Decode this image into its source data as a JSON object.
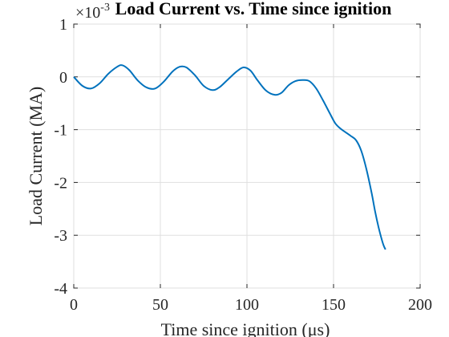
{
  "chart_data": {
    "type": "line",
    "title": "Load Current vs. Time since ignition",
    "xlabel": "Time since ignition (μs)",
    "ylabel": "Load Current (MA)",
    "exponent_label": "×10",
    "exponent_power": "-3",
    "xlim": [
      0,
      200
    ],
    "ylim": [
      -4,
      1
    ],
    "xticks": [
      0,
      50,
      100,
      150,
      200
    ],
    "yticks": [
      -4,
      -3,
      -2,
      -1,
      0,
      1
    ],
    "grid": true,
    "series": [
      {
        "color": "#0072BD",
        "x": [
          0,
          5,
          10,
          15,
          20,
          25,
          28,
          32,
          37,
          42,
          47,
          52,
          57,
          61,
          65,
          70,
          75,
          80,
          84,
          89,
          94,
          98,
          102,
          106,
          111,
          116,
          120,
          124,
          128,
          132,
          136,
          140,
          144,
          148,
          151,
          154,
          157,
          160,
          163,
          166,
          169,
          172,
          174,
          176,
          178,
          179,
          180
        ],
        "y": [
          0.0,
          -0.17,
          -0.22,
          -0.12,
          0.06,
          0.19,
          0.22,
          0.13,
          -0.07,
          -0.2,
          -0.22,
          -0.09,
          0.1,
          0.19,
          0.18,
          0.03,
          -0.17,
          -0.25,
          -0.2,
          -0.05,
          0.1,
          0.18,
          0.12,
          -0.06,
          -0.26,
          -0.34,
          -0.3,
          -0.16,
          -0.08,
          -0.06,
          -0.08,
          -0.22,
          -0.45,
          -0.7,
          -0.88,
          -0.98,
          -1.05,
          -1.12,
          -1.2,
          -1.4,
          -1.75,
          -2.2,
          -2.55,
          -2.85,
          -3.1,
          -3.2,
          -3.27
        ]
      }
    ]
  }
}
